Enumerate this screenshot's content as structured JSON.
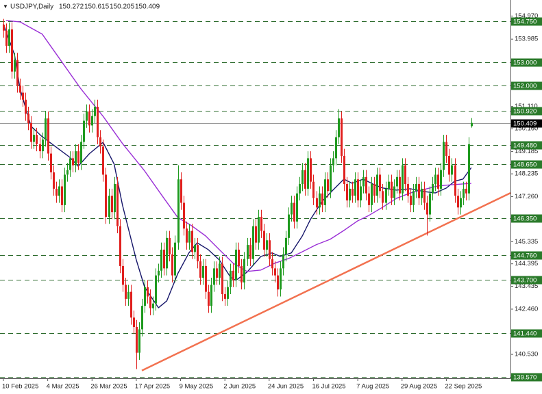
{
  "chart_data": {
    "type": "candlestick",
    "symbol": "USDJPY,Daily",
    "colors": {
      "up": "#1f9a1f",
      "down": "#e0201e",
      "level": "#2d6b2d",
      "level_box": "#2a7a2a",
      "last_price": "#000000",
      "last_line": "#999999"
    },
    "xlim": [
      -1.24,
      183.17
    ],
    "ylim": [
      139.51,
      155.655
    ],
    "xticks": [
      {
        "value": 0,
        "label": "10 Feb 2025"
      },
      {
        "value": 16,
        "label": "4 Mar 2025"
      },
      {
        "value": 32,
        "label": "26 Mar 2025"
      },
      {
        "value": 48,
        "label": "17 Apr 2025"
      },
      {
        "value": 64,
        "label": "9 May 2025"
      },
      {
        "value": 80,
        "label": "2 Jun 2025"
      },
      {
        "value": 96,
        "label": "24 Jun 2025"
      },
      {
        "value": 112,
        "label": "16 Jul 2025"
      },
      {
        "value": 128,
        "label": "7 Aug 2025"
      },
      {
        "value": 144,
        "label": "29 Aug 2025"
      },
      {
        "value": 160,
        "label": "22 Sep 2025"
      }
    ],
    "yticks": [
      {
        "value": 154.97,
        "label": "154.970"
      },
      153.985,
      {
        "value": 151.11,
        "label": "151.110"
      },
      {
        "value": 150.16,
        "label": "150.160"
      },
      149.185,
      148.235,
      {
        "value": 147.26,
        "label": "147.260"
      },
      145.335,
      144.395,
      143.435,
      {
        "value": 142.46,
        "label": "142.460"
      },
      {
        "value": 140.53,
        "label": "140.530"
      }
    ],
    "levels": [
      {
        "value": 154.75,
        "label": "154.750"
      },
      {
        "value": 153,
        "label": "153.000"
      },
      {
        "value": 152,
        "label": "152.000"
      },
      {
        "value": 150.92,
        "label": "150.920"
      },
      {
        "value": 149.48,
        "label": "149.480"
      },
      {
        "value": 148.65,
        "label": "148.650"
      },
      {
        "value": 146.35,
        "label": "146.350"
      },
      {
        "value": 144.76,
        "label": "144.760"
      },
      {
        "value": 143.7,
        "label": "143.700"
      },
      {
        "value": 141.44,
        "label": "141.440"
      },
      {
        "value": 139.57,
        "label": "139.570"
      }
    ],
    "ohlc": {
      "open": [
        154.6,
        154.35,
        153.7,
        154.4,
        152.6,
        153.1,
        152,
        151.7,
        151.4,
        150.8,
        150.4,
        149.6,
        149.9,
        149.5,
        149.2,
        149.7,
        150.6,
        149.1,
        148.3,
        147.6,
        147.3,
        147.7,
        146.9,
        148.2,
        148.4,
        148.9,
        148.6,
        149.2,
        148.7,
        149.6,
        150.5,
        150.9,
        150.3,
        150.7,
        151.1,
        149.8,
        149.4,
        148.2,
        146.4,
        147.3,
        146.6,
        147.8,
        146,
        144.3,
        143.5,
        142.9,
        143.2,
        142.1,
        141.7,
        140.6,
        141.6,
        142.6,
        143.4,
        143,
        142.5,
        142.7,
        143.9,
        144.1,
        145,
        144.2,
        145.5,
        144.8,
        143.9,
        145.3,
        148,
        147,
        145.9,
        145.3,
        145.8,
        144.9,
        145.2,
        144.5,
        143.8,
        144.3,
        143.2,
        142.6,
        143.5,
        144.2,
        143.8,
        144.4,
        143.1,
        142.9,
        143.4,
        144.1,
        143.7,
        145,
        144.3,
        143.6,
        144.6,
        145.2,
        144.6,
        146,
        145.3,
        146.4,
        145.8,
        145,
        145.4,
        144.6,
        144.2,
        143.9,
        143.3,
        144.2,
        144.8,
        145.5,
        146.5,
        147,
        146.2,
        147.4,
        147.8,
        148.4,
        147.6,
        148.9,
        147.9,
        147.2,
        146.8,
        147.4,
        146.9,
        148,
        147.5,
        148.6,
        148.9,
        149.8,
        150.6,
        149,
        147.8,
        147.1,
        147.6,
        147.3,
        148,
        147.1,
        147.7,
        148.1,
        147.4,
        146.9,
        147.8,
        147.3,
        148.2,
        147.5,
        147,
        147.6,
        147.9,
        147.2,
        147.7,
        148.1,
        147.4,
        148.6,
        147.8,
        147.3,
        146.9,
        147.5,
        147.8,
        147.2,
        147.6,
        147,
        146.5,
        147.4,
        147.8,
        148.2,
        147.6,
        148.4,
        149.6,
        149,
        148.2,
        148.6,
        147.3,
        146.8,
        147.2,
        147.6,
        147.4,
        150.272
      ],
      "high": [
        154.85,
        154.65,
        154.7,
        154.7,
        153.4,
        153.4,
        152.3,
        152,
        151.7,
        151.1,
        150.7,
        150.2,
        150.2,
        149.8,
        150,
        150.9,
        150.9,
        149.4,
        148.6,
        147.9,
        148,
        148,
        148.5,
        148.7,
        149.2,
        149.2,
        149.5,
        149.5,
        149.9,
        150.8,
        151.2,
        151.2,
        151,
        151.4,
        151.4,
        150.1,
        149.7,
        148.5,
        147.6,
        147.6,
        148.1,
        148.1,
        146.3,
        144.6,
        143.8,
        143.5,
        143.5,
        142.4,
        142,
        141.9,
        142.9,
        143.7,
        143.7,
        143.3,
        143,
        144.2,
        144.4,
        145.3,
        145.3,
        145.8,
        145.8,
        145.1,
        145.6,
        148.6,
        148.3,
        147.3,
        146.2,
        146.1,
        146.1,
        145.5,
        145.5,
        144.8,
        144.6,
        144.6,
        143.5,
        143.8,
        144.5,
        144.5,
        144.7,
        144.7,
        143.4,
        143.7,
        144.4,
        144.4,
        145.3,
        145.3,
        144.6,
        144.9,
        145.5,
        145.5,
        146.3,
        146.3,
        146.7,
        146.7,
        146.1,
        145.7,
        145.7,
        144.9,
        144.5,
        144.2,
        144.5,
        145.1,
        145.8,
        146.8,
        147.3,
        147.3,
        147.7,
        148.1,
        148.7,
        148.7,
        149.2,
        149.2,
        148.2,
        147.5,
        147.7,
        147.7,
        148.3,
        148.3,
        148.9,
        149.2,
        150.1,
        151,
        150.9,
        149.3,
        148.1,
        147.9,
        147.9,
        148.3,
        148.3,
        148,
        148.4,
        148.4,
        147.7,
        148.1,
        148.1,
        148.5,
        148.5,
        147.8,
        147.9,
        148.2,
        148.2,
        148,
        148.4,
        148.4,
        148.9,
        148.9,
        148.1,
        147.6,
        147.8,
        148.1,
        148.1,
        147.9,
        147.9,
        147.3,
        147.7,
        148.1,
        148.5,
        148.5,
        148.7,
        149.9,
        149.9,
        149.3,
        148.9,
        148.9,
        147.6,
        147.5,
        147.9,
        147.9,
        149.8,
        150.615
      ],
      "low": [
        154.05,
        153.4,
        153.4,
        152.3,
        152.3,
        151.7,
        151.4,
        151.1,
        150.5,
        150.1,
        149.3,
        149.3,
        149.2,
        148.9,
        148.9,
        149.4,
        148.8,
        148,
        147.3,
        147,
        147,
        146.6,
        146.6,
        147.9,
        148.1,
        148.3,
        148.3,
        148.4,
        148.4,
        149.3,
        150.2,
        150,
        150,
        150.4,
        149.5,
        149.1,
        147.9,
        146.1,
        146.1,
        146.3,
        146.3,
        145.7,
        144,
        143.2,
        142.6,
        142.6,
        141.8,
        141.4,
        139.9,
        140.3,
        141.3,
        142.3,
        142.7,
        142.2,
        142.2,
        142.4,
        143.6,
        143.8,
        143.9,
        143.9,
        144.5,
        143.6,
        143.6,
        145,
        146.7,
        145.6,
        145,
        145,
        144.6,
        144.6,
        144.2,
        143.5,
        143.5,
        142.9,
        142.3,
        142.3,
        143.2,
        143.5,
        143.5,
        142.8,
        142.6,
        142.6,
        143.1,
        143.4,
        143.4,
        144,
        143.3,
        143.3,
        144.3,
        144.3,
        144.3,
        145,
        145,
        145.5,
        144.7,
        144.7,
        144.3,
        143.9,
        143.6,
        143,
        143,
        143.9,
        144.5,
        145.2,
        146.2,
        145.9,
        145.9,
        147.1,
        147.5,
        147.3,
        147.3,
        147.6,
        146.9,
        146.5,
        146.5,
        146.6,
        146.6,
        147.2,
        147.2,
        148.3,
        148.6,
        149.5,
        148.7,
        147.5,
        146.8,
        146.8,
        147,
        147,
        146.8,
        146.8,
        147.4,
        147.1,
        146.6,
        146.6,
        147,
        147,
        147.2,
        146.7,
        146.7,
        147.3,
        146.9,
        146.9,
        147.4,
        147.1,
        147.1,
        147.5,
        147,
        146.6,
        146.6,
        147.2,
        146.9,
        146.9,
        146.7,
        145.6,
        146.2,
        147.1,
        147.5,
        147.3,
        147.3,
        148.1,
        148.7,
        147.9,
        147.9,
        147,
        146.5,
        146.5,
        146.9,
        147.1,
        147.1,
        150.205
      ],
      "close": [
        154.35,
        153.7,
        154.4,
        152.6,
        153.1,
        152,
        151.7,
        151.4,
        150.8,
        150.4,
        149.6,
        149.9,
        149.5,
        149.2,
        149.7,
        150.6,
        149.1,
        148.3,
        147.6,
        147.3,
        147.7,
        146.9,
        148.2,
        148.4,
        148.9,
        148.6,
        149.2,
        148.7,
        149.6,
        150.5,
        150.9,
        150.3,
        150.7,
        151.1,
        149.8,
        149.4,
        148.2,
        146.4,
        147.3,
        146.6,
        147.8,
        146,
        144.3,
        143.5,
        142.9,
        143.2,
        142.1,
        141.7,
        140.6,
        141.6,
        142.6,
        143.4,
        143,
        142.5,
        142.7,
        143.9,
        144.1,
        145,
        144.2,
        145.5,
        144.8,
        143.9,
        145.3,
        148,
        147,
        145.9,
        145.3,
        145.8,
        144.9,
        145.2,
        144.5,
        143.8,
        144.3,
        143.2,
        142.6,
        143.5,
        144.2,
        143.8,
        144.4,
        143.1,
        142.9,
        143.4,
        144.1,
        143.7,
        145,
        144.3,
        143.6,
        144.6,
        145.2,
        144.6,
        146,
        145.3,
        146.4,
        145.8,
        145,
        145.4,
        144.6,
        144.2,
        143.9,
        143.3,
        144.2,
        144.8,
        145.5,
        146.5,
        147,
        146.2,
        147.4,
        147.8,
        148.4,
        147.6,
        148.9,
        147.9,
        147.2,
        146.8,
        147.4,
        146.9,
        148,
        147.5,
        148.6,
        148.9,
        149.8,
        150.6,
        149,
        147.8,
        147.1,
        147.6,
        147.3,
        148,
        147.1,
        147.7,
        148.1,
        147.4,
        146.9,
        147.8,
        147.3,
        148.2,
        147.5,
        147,
        147.6,
        147.9,
        147.2,
        147.7,
        148.1,
        147.4,
        148.6,
        147.8,
        147.3,
        146.9,
        147.5,
        147.8,
        147.2,
        147.6,
        147,
        146.5,
        147.4,
        147.8,
        148.2,
        147.6,
        148.4,
        149.6,
        149,
        148.2,
        148.6,
        147.3,
        146.8,
        147.2,
        147.6,
        147.4,
        149.5,
        150.409
      ]
    },
    "moving_averages": [
      {
        "color": "#16166a",
        "x": [
          0,
          4,
          6,
          10,
          14,
          19,
          24,
          27,
          31,
          36,
          40,
          43,
          48,
          51,
          56,
          59,
          63,
          67,
          70,
          74,
          78,
          82,
          84,
          88,
          93,
          97,
          100,
          104,
          108,
          111,
          115,
          119,
          123,
          126,
          130,
          134,
          137,
          142,
          147,
          152,
          156,
          160,
          163,
          166,
          169
        ],
        "values": [
          154.63,
          153.32,
          151.86,
          150.26,
          149.82,
          149.38,
          148.94,
          148.56,
          149.09,
          149.58,
          148.65,
          146.9,
          144.56,
          143.4,
          142.52,
          142.81,
          143.98,
          144.86,
          145.29,
          145,
          144.56,
          143.83,
          143.69,
          144.04,
          144.71,
          144.86,
          144.71,
          144.86,
          145.59,
          146.31,
          147.04,
          147.54,
          148.01,
          147.83,
          148.01,
          147.77,
          147.63,
          147.54,
          147.6,
          147.48,
          147.42,
          147.63,
          147.92,
          148.01,
          148.5
        ]
      },
      {
        "color": "#9a2fd6",
        "x": [
          1,
          6,
          14,
          21,
          28,
          36,
          43,
          51,
          58,
          63,
          68,
          73,
          78,
          83,
          88,
          93,
          98,
          103,
          108,
          113,
          118,
          123,
          128,
          132,
          137,
          142,
          147,
          152,
          157,
          162,
          169
        ],
        "values": [
          154.78,
          154.72,
          154.2,
          153.03,
          151.86,
          150.69,
          149.53,
          148.36,
          147.19,
          146.37,
          146.02,
          145.59,
          145,
          144.42,
          144.07,
          144.13,
          144.42,
          144.62,
          144.91,
          145.21,
          145.44,
          145.82,
          146.23,
          146.46,
          146.81,
          147.19,
          147.42,
          147.57,
          147.72,
          147.77,
          147.83
        ]
      }
    ],
    "trendline": {
      "color": "#f2714f",
      "x": [
        50,
        183.17
      ],
      "values": [
        139.84,
        147.42
      ]
    }
  }
}
